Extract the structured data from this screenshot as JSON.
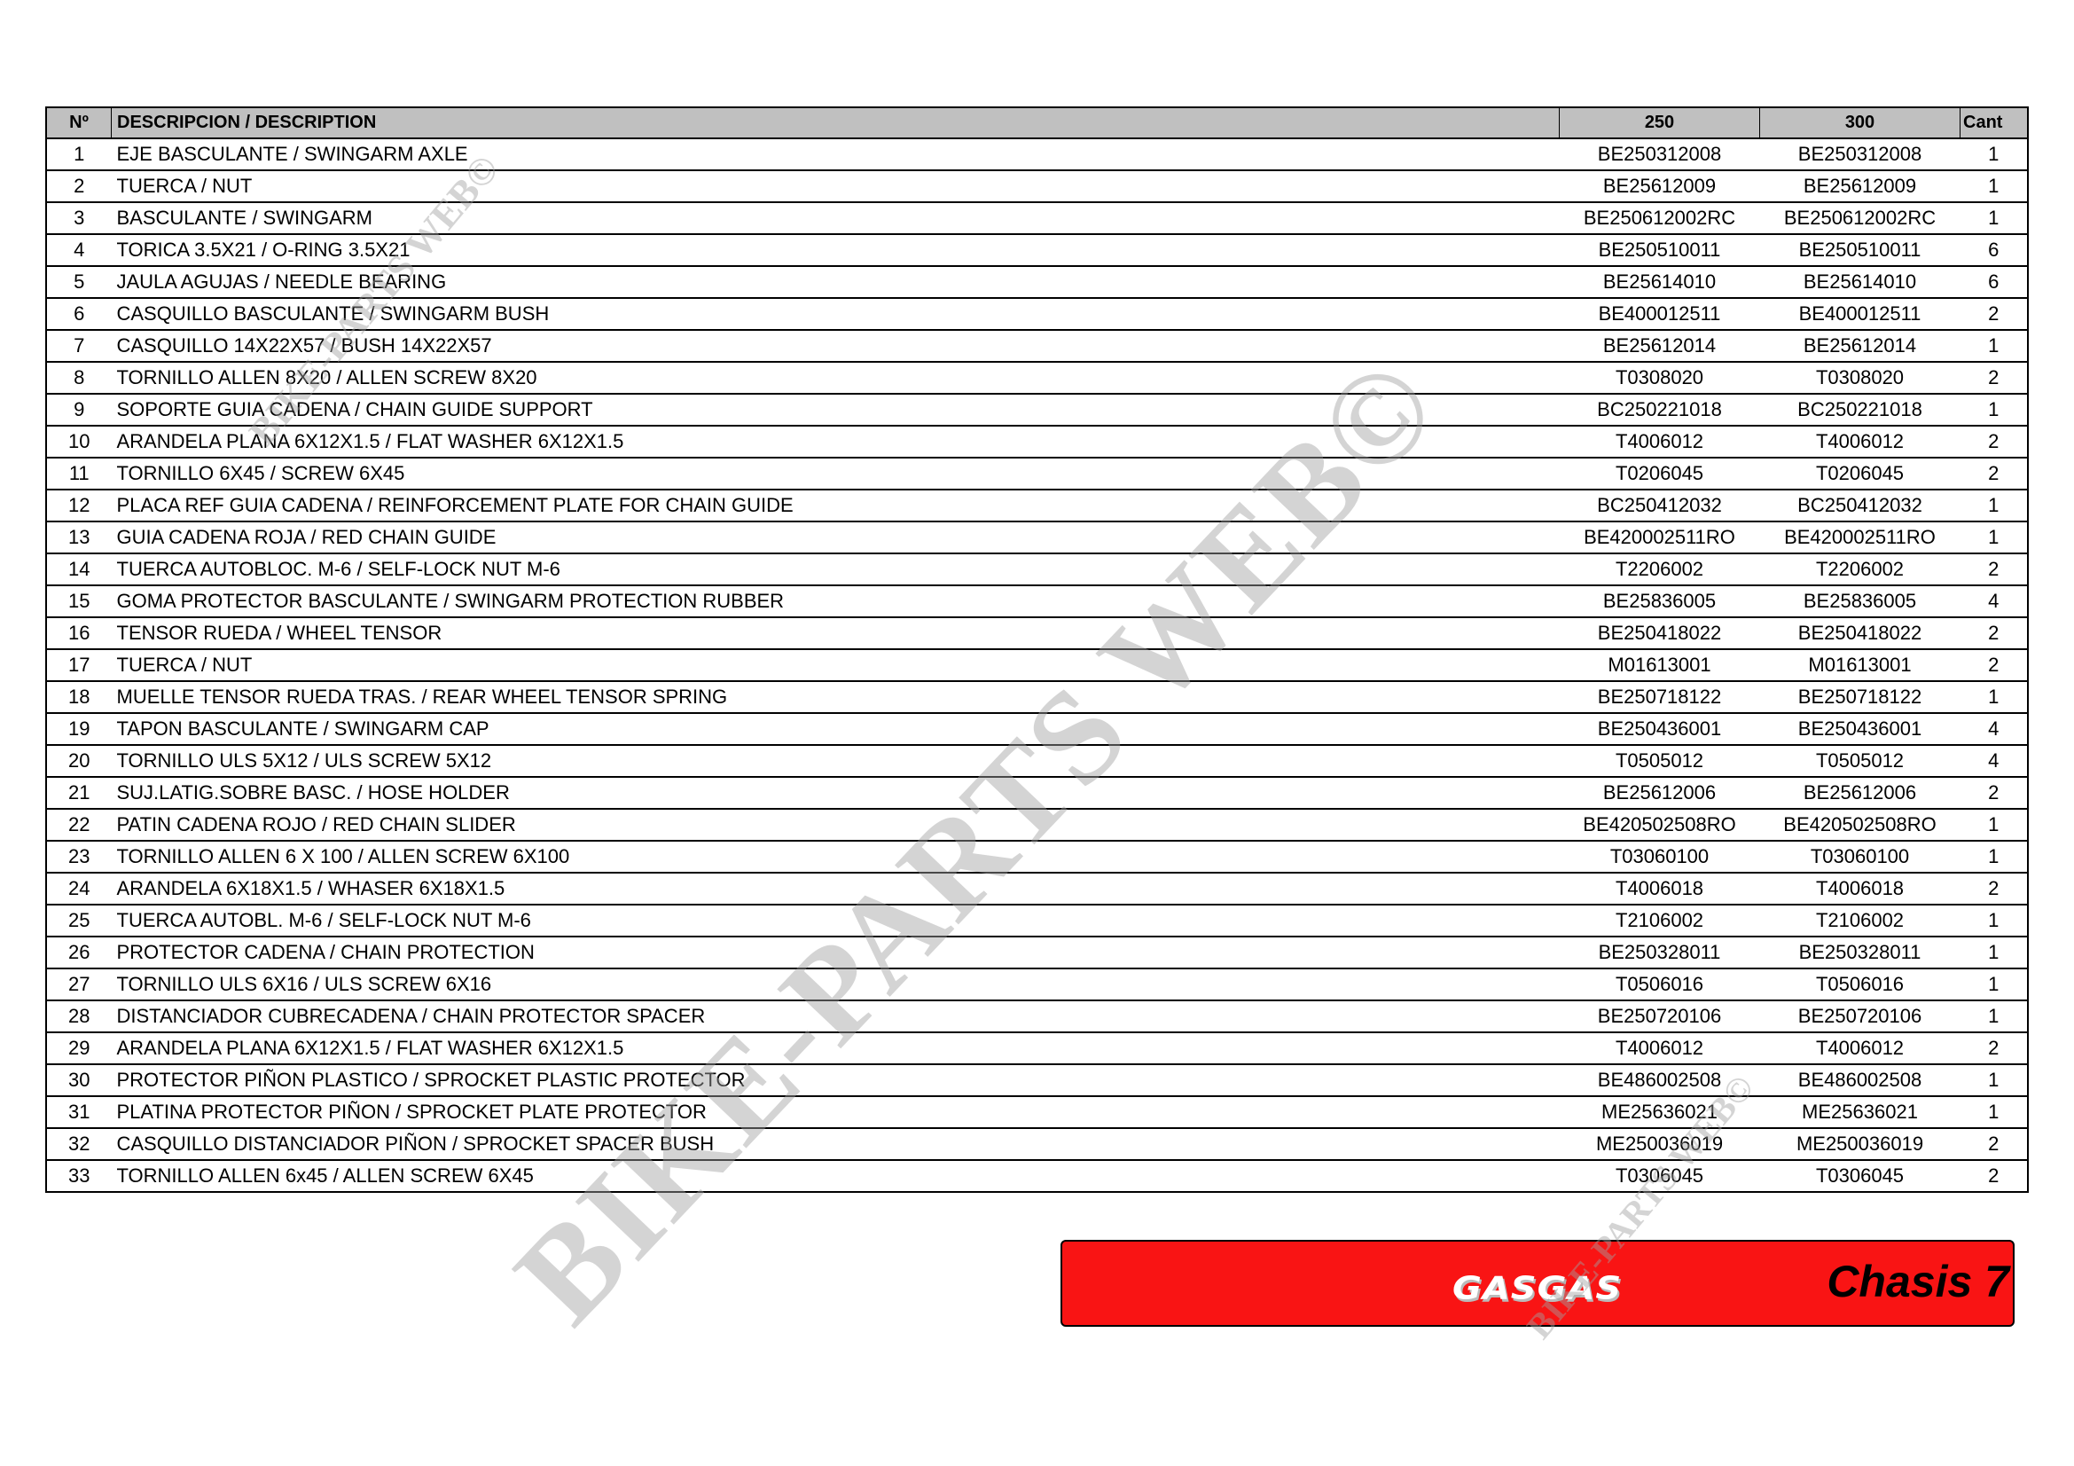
{
  "table": {
    "headers": {
      "no": "Nº",
      "description": "DESCRIPCION / DESCRIPTION",
      "col250": "250",
      "col300": "300",
      "qty": "Cant"
    },
    "rows": [
      {
        "no": "1",
        "desc": "EJE BASCULANTE / SWINGARM AXLE",
        "p250": "BE250312008",
        "p300": "BE250312008",
        "qty": "1"
      },
      {
        "no": "2",
        "desc": "TUERCA / NUT",
        "p250": "BE25612009",
        "p300": "BE25612009",
        "qty": "1"
      },
      {
        "no": "3",
        "desc": "BASCULANTE / SWINGARM",
        "p250": "BE250612002RC",
        "p300": "BE250612002RC",
        "qty": "1"
      },
      {
        "no": "4",
        "desc": "TORICA 3.5X21 / O-RING 3.5X21",
        "p250": "BE250510011",
        "p300": "BE250510011",
        "qty": "6"
      },
      {
        "no": "5",
        "desc": "JAULA AGUJAS / NEEDLE BEARING",
        "p250": "BE25614010",
        "p300": "BE25614010",
        "qty": "6"
      },
      {
        "no": "6",
        "desc": "CASQUILLO BASCULANTE / SWINGARM BUSH",
        "p250": "BE400012511",
        "p300": "BE400012511",
        "qty": "2"
      },
      {
        "no": "7",
        "desc": "CASQUILLO 14X22X57 / BUSH 14X22X57",
        "p250": "BE25612014",
        "p300": "BE25612014",
        "qty": "1"
      },
      {
        "no": "8",
        "desc": "TORNILLO ALLEN 8X20 / ALLEN SCREW 8X20",
        "p250": "T0308020",
        "p300": "T0308020",
        "qty": "2"
      },
      {
        "no": "9",
        "desc": "SOPORTE GUIA CADENA / CHAIN GUIDE SUPPORT",
        "p250": "BC250221018",
        "p300": "BC250221018",
        "qty": "1"
      },
      {
        "no": "10",
        "desc": "ARANDELA PLANA 6X12X1.5 / FLAT WASHER 6X12X1.5",
        "p250": "T4006012",
        "p300": "T4006012",
        "qty": "2"
      },
      {
        "no": "11",
        "desc": "TORNILLO 6X45 / SCREW 6X45",
        "p250": "T0206045",
        "p300": "T0206045",
        "qty": "2"
      },
      {
        "no": "12",
        "desc": "PLACA REF GUIA CADENA / REINFORCEMENT PLATE FOR CHAIN GUIDE",
        "p250": "BC250412032",
        "p300": "BC250412032",
        "qty": "1"
      },
      {
        "no": "13",
        "desc": "GUIA CADENA ROJA / RED CHAIN GUIDE",
        "p250": "BE420002511RO",
        "p300": "BE420002511RO",
        "qty": "1"
      },
      {
        "no": "14",
        "desc": "TUERCA AUTOBLOC. M-6 / SELF-LOCK NUT M-6",
        "p250": "T2206002",
        "p300": "T2206002",
        "qty": "2"
      },
      {
        "no": "15",
        "desc": "GOMA PROTECTOR BASCULANTE / SWINGARM PROTECTION RUBBER",
        "p250": "BE25836005",
        "p300": "BE25836005",
        "qty": "4"
      },
      {
        "no": "16",
        "desc": "TENSOR RUEDA / WHEEL TENSOR",
        "p250": "BE250418022",
        "p300": "BE250418022",
        "qty": "2"
      },
      {
        "no": "17",
        "desc": "TUERCA / NUT",
        "p250": "M01613001",
        "p300": "M01613001",
        "qty": "2"
      },
      {
        "no": "18",
        "desc": "MUELLE TENSOR RUEDA TRAS. / REAR WHEEL TENSOR SPRING",
        "p250": "BE250718122",
        "p300": "BE250718122",
        "qty": "1"
      },
      {
        "no": "19",
        "desc": "TAPON BASCULANTE / SWINGARM CAP",
        "p250": "BE250436001",
        "p300": "BE250436001",
        "qty": "4"
      },
      {
        "no": "20",
        "desc": "TORNILLO ULS 5X12 / ULS SCREW 5X12",
        "p250": "T0505012",
        "p300": "T0505012",
        "qty": "4"
      },
      {
        "no": "21",
        "desc": "SUJ.LATIG.SOBRE BASC. / HOSE HOLDER",
        "p250": "BE25612006",
        "p300": "BE25612006",
        "qty": "2"
      },
      {
        "no": "22",
        "desc": "PATIN CADENA ROJO / RED CHAIN SLIDER",
        "p250": "BE420502508RO",
        "p300": "BE420502508RO",
        "qty": "1"
      },
      {
        "no": "23",
        "desc": "TORNILLO ALLEN 6 X 100 / ALLEN SCREW 6X100",
        "p250": "T03060100",
        "p300": "T03060100",
        "qty": "1"
      },
      {
        "no": "24",
        "desc": "ARANDELA 6X18X1.5 / WHASER 6X18X1.5",
        "p250": "T4006018",
        "p300": "T4006018",
        "qty": "2"
      },
      {
        "no": "25",
        "desc": "TUERCA AUTOBL. M-6 / SELF-LOCK NUT M-6",
        "p250": "T2106002",
        "p300": "T2106002",
        "qty": "1"
      },
      {
        "no": "26",
        "desc": "PROTECTOR CADENA / CHAIN PROTECTION",
        "p250": "BE250328011",
        "p300": "BE250328011",
        "qty": "1"
      },
      {
        "no": "27",
        "desc": "TORNILLO ULS 6X16 / ULS SCREW 6X16",
        "p250": "T0506016",
        "p300": "T0506016",
        "qty": "1"
      },
      {
        "no": "28",
        "desc": "DISTANCIADOR CUBRECADENA / CHAIN PROTECTOR SPACER",
        "p250": "BE250720106",
        "p300": "BE250720106",
        "qty": "1"
      },
      {
        "no": "29",
        "desc": "ARANDELA PLANA 6X12X1.5 / FLAT WASHER 6X12X1.5",
        "p250": "T4006012",
        "p300": "T4006012",
        "qty": "2"
      },
      {
        "no": "30",
        "desc": "PROTECTOR PIÑON PLASTICO / SPROCKET PLASTIC PROTECTOR",
        "p250": "BE486002508",
        "p300": "BE486002508",
        "qty": "1"
      },
      {
        "no": "31",
        "desc": "PLATINA PROTECTOR PIÑON / SPROCKET PLATE PROTECTOR",
        "p250": "ME25636021",
        "p300": "ME25636021",
        "qty": "1"
      },
      {
        "no": "32",
        "desc": "CASQUILLO DISTANCIADOR PIÑON / SPROCKET SPACER BUSH",
        "p250": "ME250036019",
        "p300": "ME250036019",
        "qty": "2"
      },
      {
        "no": "33",
        "desc": "TORNILLO ALLEN 6x45 / ALLEN SCREW 6X45",
        "p250": "T0306045",
        "p300": "T0306045",
        "qty": "2"
      }
    ]
  },
  "banner": {
    "brand": "GASGAS",
    "title": "Chasis 7",
    "color": "#f91414"
  },
  "watermark": {
    "text": "BIKE-PARTS WEB©"
  }
}
